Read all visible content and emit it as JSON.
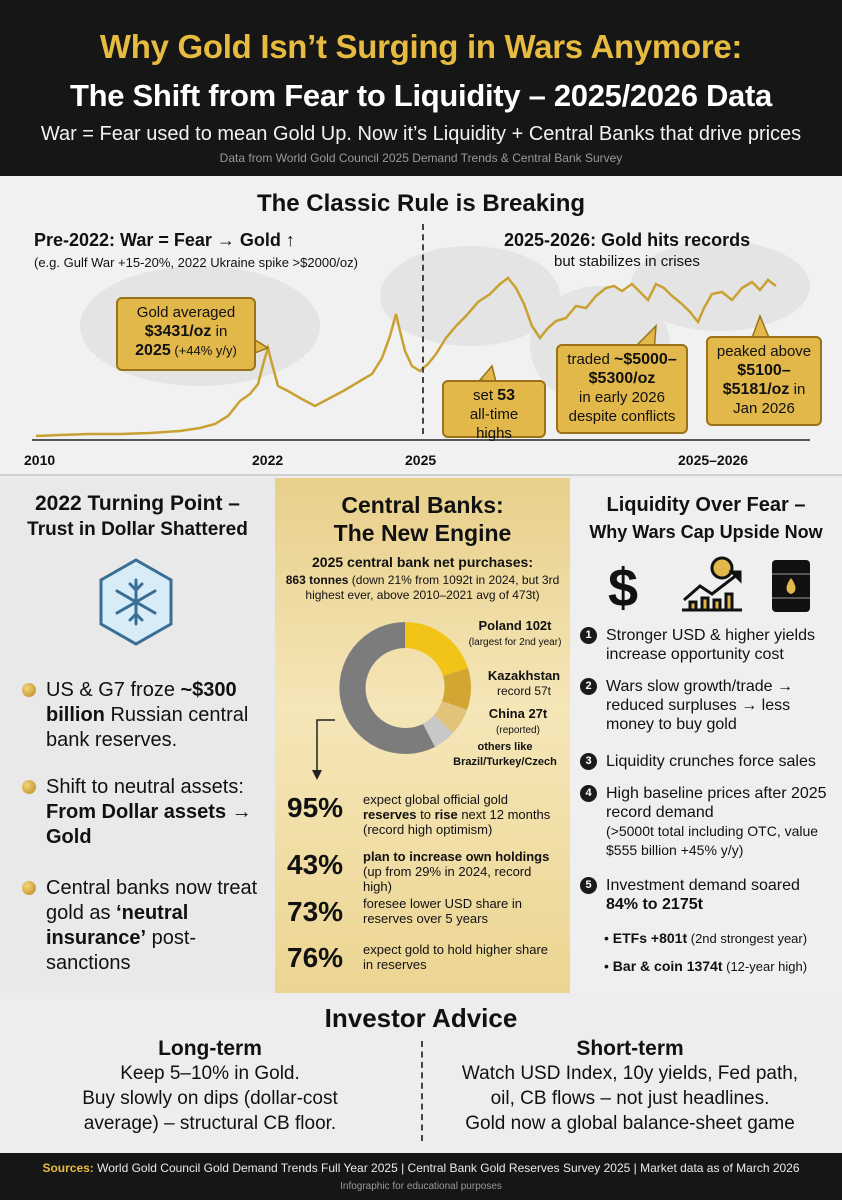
{
  "header": {
    "title_line1": "Why Gold Isn’t Surging in Wars Anymore:",
    "title_line2": "The Shift from Fear to Liquidity – 2025/2026 Data",
    "subtitle": "War = Fear used to mean Gold Up. Now it’s Liquidity + Central Banks that drive prices",
    "source_note": "Data from World Gold Council 2025 Demand Trends & Central Bank Survey"
  },
  "classic": {
    "title": "The Classic Rule is Breaking",
    "pre_title": "Pre-2022: War = Fear → Gold ↑",
    "pre_note": "(e.g. Gulf War +15-20%, 2022 Ukraine spike >$2000/oz)",
    "post_title": "2025-2026: Gold hits records",
    "post_note": "but stabilizes in crises",
    "callouts": {
      "c1_a": "Gold averaged",
      "c1_b": "$3431/oz",
      "c1_c": " in",
      "c1_d": "2025",
      "c1_e": " (+44% y/y)",
      "c2_a": "set ",
      "c2_b": "53",
      "c2_c": "all-time highs",
      "c3_a": "traded ",
      "c3_b": "~$5000–",
      "c3_c": "$5300/oz",
      "c3_d": "in early 2026",
      "c3_e": "despite conflicts",
      "c4_a": "peaked above",
      "c4_b": "$5100–",
      "c4_c": "$5181/oz",
      "c4_d": " in",
      "c4_e": "Jan 2026"
    },
    "x_labels": [
      "2010",
      "2022",
      "2025",
      "2025–2026"
    ]
  },
  "left": {
    "title1": "2022 Turning Point –",
    "title2": "Trust in Dollar Shattered",
    "bullet1_a": "US & G7 froze ",
    "bullet1_b": "~$300 billion",
    "bullet1_c": " Russian central bank reserves.",
    "bullet2_a": "Shift to neutral assets:",
    "bullet2_b": "From Dollar assets → Gold",
    "bullet3_a": "Central banks now treat gold as ",
    "bullet3_b": "‘neutral insurance’",
    "bullet3_c": " post-sanctions"
  },
  "center": {
    "title1": "Central Banks:",
    "title2": "The New Engine",
    "head": "2025 central bank net purchases:",
    "body_bold": "863 tonnes",
    "body_rest": " (down 21% from 1092t in 2024, but 3rd highest ever, above 2010–2021 avg of 473t)",
    "donut": {
      "poland_a": "Poland 102t",
      "poland_b": "(largest for 2nd year)",
      "kaz_a": "Kazakhstan",
      "kaz_b": "record 57t",
      "china_a": "China 27t",
      "china_b": "(reported)",
      "others_a": "others like",
      "others_b": "Brazil/Turkey/Czech"
    },
    "stats": [
      {
        "pct": "95%",
        "d1": "expect global official gold ",
        "d2": "reserves",
        "d3": " to ",
        "d4": "rise",
        "d5": " next 12 months (record high optimism)"
      },
      {
        "pct": "43%",
        "d1": "plan to increase own holdings",
        "d2": "(up from 29% in 2024, record high)"
      },
      {
        "pct": "73%",
        "d1": "foresee lower USD share in reserves over 5 years"
      },
      {
        "pct": "76%",
        "d1": "expect gold to hold higher share in reserves"
      }
    ]
  },
  "right": {
    "title1": "Liquidity Over Fear –",
    "title2": "Why Wars Cap Upside Now",
    "items": [
      "Stronger USD & higher yields increase opportunity cost",
      "Wars slow growth/trade → reduced surpluses → less money to buy gold",
      "Liquidity crunches force sales",
      "High baseline prices after 2025 record demand",
      "(>5000t total including OTC, value $555 billion +45% y/y)",
      "Investment demand soared",
      "84% to 2175t"
    ],
    "nums": [
      "1",
      "2",
      "3",
      "4",
      "5"
    ],
    "sub1_a": "ETFs +801t",
    "sub1_b": " (2nd strongest year)",
    "sub2_a": "Bar & coin 1374t",
    "sub2_b": " (12-year high)"
  },
  "advice": {
    "title": "Investor Advice",
    "long_head": "Long-term",
    "long_l1": "Keep 5–10% in Gold.",
    "long_l2": "Buy slowly on dips (dollar-cost",
    "long_l3": "average) – structural CB floor.",
    "short_head": "Short-term",
    "short_l1": "Watch USD Index, 10y yields, Fed path,",
    "short_l2": "oil, CB flows – not just headlines.",
    "short_l3": "Gold now a global balance-sheet game"
  },
  "footer": {
    "sources_label": "Sources:",
    "sources": " World Gold Council Gold Demand Trends Full Year 2025 | Central Bank Gold Reserves Survey 2025 | Market data as of March 2026",
    "note": "Infographic for educational purposes"
  },
  "colors": {
    "gold": "#e6bb3f",
    "dark": "#161616",
    "line": "#c9a032"
  }
}
